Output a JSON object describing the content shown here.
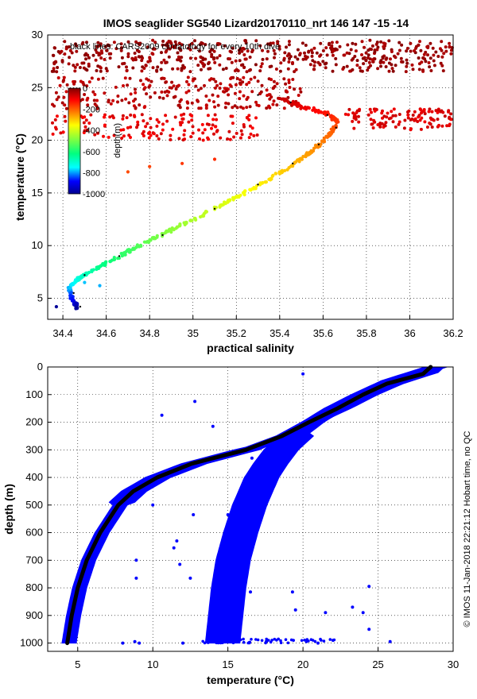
{
  "chart_data": [
    {
      "type": "scatter",
      "title": "IMOS seaglider SG540 Lizard20170110_nrt 146  147  -15  -14",
      "annotation": "black lines: CARS2009 climatology for every 10th dive",
      "xlabel": "practical salinity",
      "ylabel": "temperature (°C)",
      "xlim": [
        34.33,
        36.2
      ],
      "ylim": [
        3,
        30
      ],
      "xticks": [
        "34.4",
        "34.6",
        "34.8",
        "35",
        "35.2",
        "35.4",
        "35.6",
        "35.8",
        "36",
        "36.2"
      ],
      "yticks": [
        "5",
        "10",
        "15",
        "20",
        "25",
        "30"
      ],
      "grid": true,
      "colorbar": {
        "label": "depth(m)",
        "range": [
          0,
          -1000
        ],
        "ticks": [
          "0",
          "-200",
          "-400",
          "-600",
          "-800",
          "-1000"
        ],
        "colormap": "jet-reversed",
        "placement": "inside-left"
      },
      "series": [
        {
          "role": "observations",
          "color_by": "depth",
          "ts_curve": [
            {
              "salinity": 34.47,
              "temperature": 4.0,
              "depth": 1000
            },
            {
              "salinity": 34.44,
              "temperature": 5.0,
              "depth": 880
            },
            {
              "salinity": 34.43,
              "temperature": 6.0,
              "depth": 780
            },
            {
              "salinity": 34.48,
              "temperature": 7.0,
              "depth": 700
            },
            {
              "salinity": 34.57,
              "temperature": 8.0,
              "depth": 630
            },
            {
              "salinity": 34.68,
              "temperature": 9.2,
              "depth": 570
            },
            {
              "salinity": 34.8,
              "temperature": 10.5,
              "depth": 510
            },
            {
              "salinity": 34.93,
              "temperature": 11.8,
              "depth": 460
            },
            {
              "salinity": 35.07,
              "temperature": 13.2,
              "depth": 410
            },
            {
              "salinity": 35.2,
              "temperature": 14.6,
              "depth": 370
            },
            {
              "salinity": 35.33,
              "temperature": 16.0,
              "depth": 330
            },
            {
              "salinity": 35.45,
              "temperature": 17.5,
              "depth": 290
            },
            {
              "salinity": 35.55,
              "temperature": 19.0,
              "depth": 250
            },
            {
              "salinity": 35.63,
              "temperature": 20.5,
              "depth": 210
            },
            {
              "salinity": 35.67,
              "temperature": 21.7,
              "depth": 170
            },
            {
              "salinity": 35.62,
              "temperature": 22.5,
              "depth": 130
            },
            {
              "salinity": 35.5,
              "temperature": 23.2,
              "depth": 90
            },
            {
              "salinity": 35.4,
              "temperature": 24.0,
              "depth": 60
            }
          ],
          "surface_clusters": [
            {
              "salinity_range": [
                34.35,
                36.2
              ],
              "temperature_range": [
                26.5,
                29.5
              ],
              "depth": 5
            },
            {
              "salinity_range": [
                34.35,
                35.5
              ],
              "temperature_range": [
                23.0,
                26.0
              ],
              "depth": 30
            },
            {
              "salinity_range": [
                35.7,
                36.2
              ],
              "temperature_range": [
                21.0,
                23.0
              ],
              "depth": 60
            },
            {
              "salinity_range": [
                34.35,
                35.3
              ],
              "temperature_range": [
                20.0,
                22.5
              ],
              "depth": 70
            }
          ],
          "outliers": [
            {
              "salinity": 34.7,
              "temperature": 17.0,
              "depth": 180
            },
            {
              "salinity": 34.8,
              "temperature": 17.5,
              "depth": 170
            },
            {
              "salinity": 34.95,
              "temperature": 17.8,
              "depth": 160
            },
            {
              "salinity": 35.1,
              "temperature": 18.2,
              "depth": 150
            },
            {
              "salinity": 34.57,
              "temperature": 6.2,
              "depth": 790
            },
            {
              "salinity": 34.5,
              "temperature": 6.5,
              "depth": 780
            },
            {
              "salinity": 34.37,
              "temperature": 4.2,
              "depth": 990
            }
          ]
        },
        {
          "role": "climatology",
          "color": "#000000",
          "points": [
            {
              "salinity": 34.48,
              "temperature": 4.2
            },
            {
              "salinity": 34.45,
              "temperature": 5.5
            },
            {
              "salinity": 34.5,
              "temperature": 7.2
            },
            {
              "salinity": 34.66,
              "temperature": 9.0
            },
            {
              "salinity": 34.86,
              "temperature": 11.0
            },
            {
              "salinity": 35.1,
              "temperature": 13.5
            },
            {
              "salinity": 35.3,
              "temperature": 15.8
            },
            {
              "salinity": 35.46,
              "temperature": 17.8
            },
            {
              "salinity": 35.58,
              "temperature": 19.6
            },
            {
              "salinity": 35.66,
              "temperature": 21.2
            },
            {
              "salinity": 35.62,
              "temperature": 22.4
            },
            {
              "salinity": 35.45,
              "temperature": 23.6
            },
            {
              "salinity": 35.3,
              "temperature": 24.3
            }
          ]
        }
      ]
    },
    {
      "type": "scatter",
      "xlabel": "temperature (°C)",
      "ylabel": "depth (m)",
      "xlim": [
        3,
        30
      ],
      "ylim": [
        1030,
        0
      ],
      "y_reversed": true,
      "xticks": [
        "5",
        "10",
        "15",
        "20",
        "25",
        "30"
      ],
      "yticks": [
        "0",
        "100",
        "200",
        "300",
        "400",
        "500",
        "600",
        "700",
        "800",
        "900",
        "1000"
      ],
      "grid": true,
      "side_label": "© IMOS 11-Jan-2018 22:21:12 Hobart time, no QC",
      "series": [
        {
          "role": "observations",
          "color": "#0000ff",
          "profile_a": [
            {
              "depth": 0,
              "temperature": 28.7
            },
            {
              "depth": 20,
              "temperature": 28.3
            },
            {
              "depth": 60,
              "temperature": 26.0
            },
            {
              "depth": 100,
              "temperature": 24.3
            },
            {
              "depth": 150,
              "temperature": 22.5
            },
            {
              "depth": 200,
              "temperature": 20.5
            },
            {
              "depth": 250,
              "temperature": 18.8
            },
            {
              "depth": 300,
              "temperature": 16.3
            },
            {
              "depth": 350,
              "temperature": 12.8
            },
            {
              "depth": 400,
              "temperature": 10.4
            },
            {
              "depth": 450,
              "temperature": 8.8
            },
            {
              "depth": 500,
              "temperature": 7.8
            },
            {
              "depth": 600,
              "temperature": 6.6
            },
            {
              "depth": 700,
              "temperature": 5.7
            },
            {
              "depth": 800,
              "temperature": 5.1
            },
            {
              "depth": 900,
              "temperature": 4.7
            },
            {
              "depth": 1000,
              "temperature": 4.4
            }
          ],
          "profile_b": [
            {
              "depth": 0,
              "temperature": 28.7
            },
            {
              "depth": 50,
              "temperature": 25.8
            },
            {
              "depth": 100,
              "temperature": 23.8
            },
            {
              "depth": 150,
              "temperature": 22.0
            },
            {
              "depth": 200,
              "temperature": 20.5
            },
            {
              "depth": 250,
              "temperature": 19.3
            },
            {
              "depth": 300,
              "temperature": 18.3
            },
            {
              "depth": 350,
              "temperature": 17.6
            },
            {
              "depth": 400,
              "temperature": 17.0
            },
            {
              "depth": 500,
              "temperature": 16.2
            },
            {
              "depth": 600,
              "temperature": 15.6
            },
            {
              "depth": 700,
              "temperature": 15.1
            },
            {
              "depth": 800,
              "temperature": 14.8
            },
            {
              "depth": 900,
              "temperature": 14.6
            },
            {
              "depth": 1000,
              "temperature": 14.4
            }
          ],
          "outliers": [
            {
              "temperature": 20.0,
              "depth": 25
            },
            {
              "temperature": 12.8,
              "depth": 125
            },
            {
              "temperature": 10.6,
              "depth": 175
            },
            {
              "temperature": 14.0,
              "depth": 215
            },
            {
              "temperature": 16.6,
              "depth": 330
            },
            {
              "temperature": 10.0,
              "depth": 500
            },
            {
              "temperature": 15.0,
              "depth": 535
            },
            {
              "temperature": 12.7,
              "depth": 535
            },
            {
              "temperature": 11.6,
              "depth": 630
            },
            {
              "temperature": 11.4,
              "depth": 655
            },
            {
              "temperature": 8.9,
              "depth": 700
            },
            {
              "temperature": 8.9,
              "depth": 765
            },
            {
              "temperature": 11.8,
              "depth": 715
            },
            {
              "temperature": 12.5,
              "depth": 765
            },
            {
              "temperature": 16.5,
              "depth": 815
            },
            {
              "temperature": 19.3,
              "depth": 815
            },
            {
              "temperature": 24.4,
              "depth": 795
            },
            {
              "temperature": 23.3,
              "depth": 870
            },
            {
              "temperature": 21.5,
              "depth": 890
            },
            {
              "temperature": 19.5,
              "depth": 880
            },
            {
              "temperature": 24.4,
              "depth": 950
            },
            {
              "temperature": 24.0,
              "depth": 890
            },
            {
              "temperature": 8.0,
              "depth": 1000
            },
            {
              "temperature": 8.8,
              "depth": 995
            },
            {
              "temperature": 9.1,
              "depth": 1000
            },
            {
              "temperature": 12.0,
              "depth": 1000
            },
            {
              "temperature": 25.8,
              "depth": 995
            },
            {
              "temperature": 22.0,
              "depth": 990
            },
            {
              "temperature": 21.0,
              "depth": 1000
            }
          ]
        },
        {
          "role": "climatology",
          "color": "#000000",
          "points": [
            {
              "depth": 0,
              "temperature": 28.5
            },
            {
              "depth": 25,
              "temperature": 28.0
            },
            {
              "depth": 60,
              "temperature": 25.6
            },
            {
              "depth": 100,
              "temperature": 24.0
            },
            {
              "depth": 150,
              "temperature": 22.3
            },
            {
              "depth": 200,
              "temperature": 20.4
            },
            {
              "depth": 250,
              "temperature": 18.6
            },
            {
              "depth": 300,
              "temperature": 16.2
            },
            {
              "depth": 350,
              "temperature": 12.6
            },
            {
              "depth": 400,
              "temperature": 10.3
            },
            {
              "depth": 450,
              "temperature": 8.7
            },
            {
              "depth": 500,
              "temperature": 7.7
            },
            {
              "depth": 600,
              "temperature": 6.5
            },
            {
              "depth": 700,
              "temperature": 5.6
            },
            {
              "depth": 800,
              "temperature": 5.0
            },
            {
              "depth": 900,
              "temperature": 4.6
            },
            {
              "depth": 1000,
              "temperature": 4.3
            }
          ]
        }
      ]
    }
  ]
}
